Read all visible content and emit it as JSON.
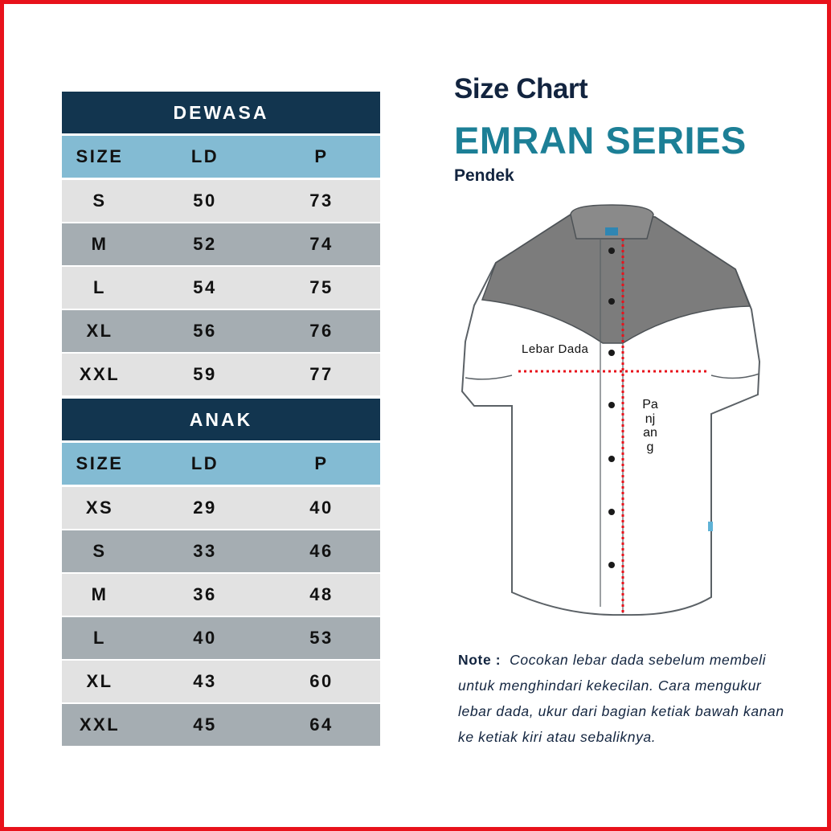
{
  "colors": {
    "frame": "#e8121b",
    "band": "#12354f",
    "header": "#83bbd3",
    "row_light": "#e2e2e2",
    "row_dark": "#a5adb2",
    "title_navy": "#12243f",
    "title_teal": "#1c7f96",
    "measure_line": "#e8121b"
  },
  "dewasa": {
    "title": "DEWASA",
    "headers": {
      "size": "SIZE",
      "ld": "LD",
      "p": "P"
    },
    "rows": [
      {
        "size": "S",
        "ld": "50",
        "p": "73"
      },
      {
        "size": "M",
        "ld": "52",
        "p": "74"
      },
      {
        "size": "L",
        "ld": "54",
        "p": "75"
      },
      {
        "size": "XL",
        "ld": "56",
        "p": "76"
      },
      {
        "size": "XXL",
        "ld": "59",
        "p": "77"
      }
    ]
  },
  "anak": {
    "title": "ANAK",
    "headers": {
      "size": "SIZE",
      "ld": "LD",
      "p": "P"
    },
    "rows": [
      {
        "size": "XS",
        "ld": "29",
        "p": "40"
      },
      {
        "size": "S",
        "ld": "33",
        "p": "46"
      },
      {
        "size": "M",
        "ld": "36",
        "p": "48"
      },
      {
        "size": "L",
        "ld": "40",
        "p": "53"
      },
      {
        "size": "XL",
        "ld": "43",
        "p": "60"
      },
      {
        "size": "XXL",
        "ld": "45",
        "p": "64"
      }
    ]
  },
  "heading": {
    "line1": "Size Chart",
    "line2": "EMRAN SERIES",
    "line3": "Pendek"
  },
  "diagram": {
    "chest_label": "Lebar Dada",
    "length_label": "Panjang"
  },
  "note": {
    "label": "Note :",
    "text": "Cocokan lebar dada sebelum membeli untuk menghindari kekecilan. Cara mengukur lebar dada, ukur dari bagian ketiak bawah kanan ke ketiak kiri atau sebaliknya."
  }
}
